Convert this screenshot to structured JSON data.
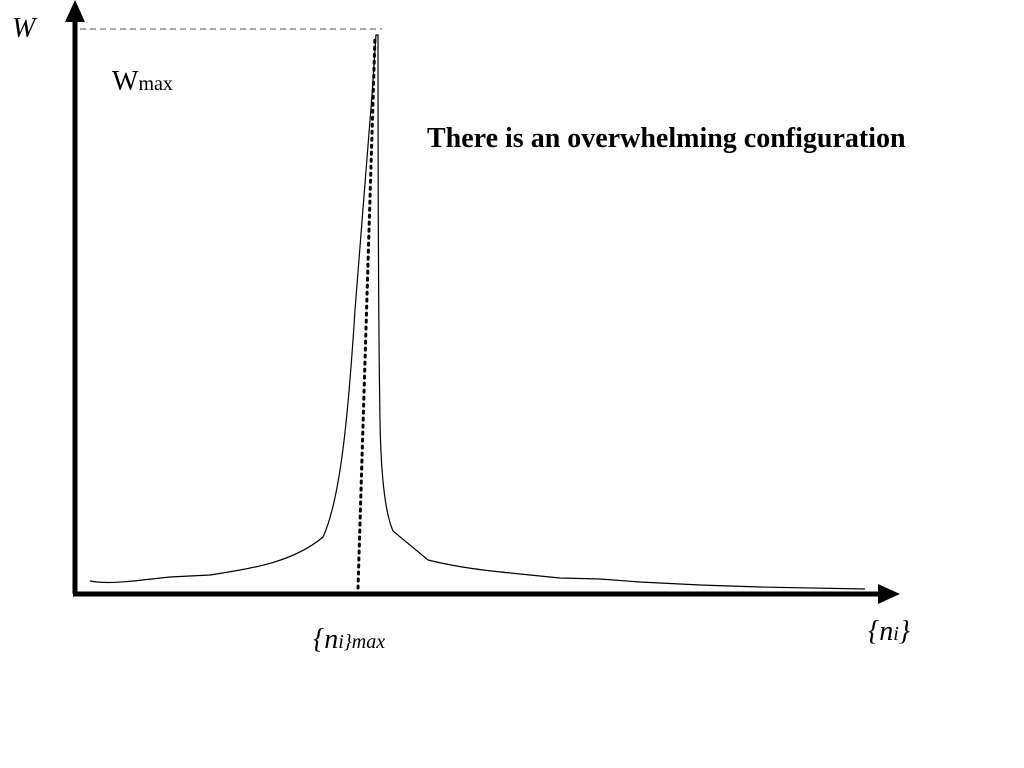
{
  "y_axis_label": "W",
  "wmax_label": {
    "base": "W",
    "sub": "max"
  },
  "annotation": "There is an overwhelming configuration",
  "peak_label": {
    "base": "{n",
    "sub": "i}max"
  },
  "x_axis_label": {
    "open": "{n",
    "sub": "i",
    "close": "}"
  }
}
